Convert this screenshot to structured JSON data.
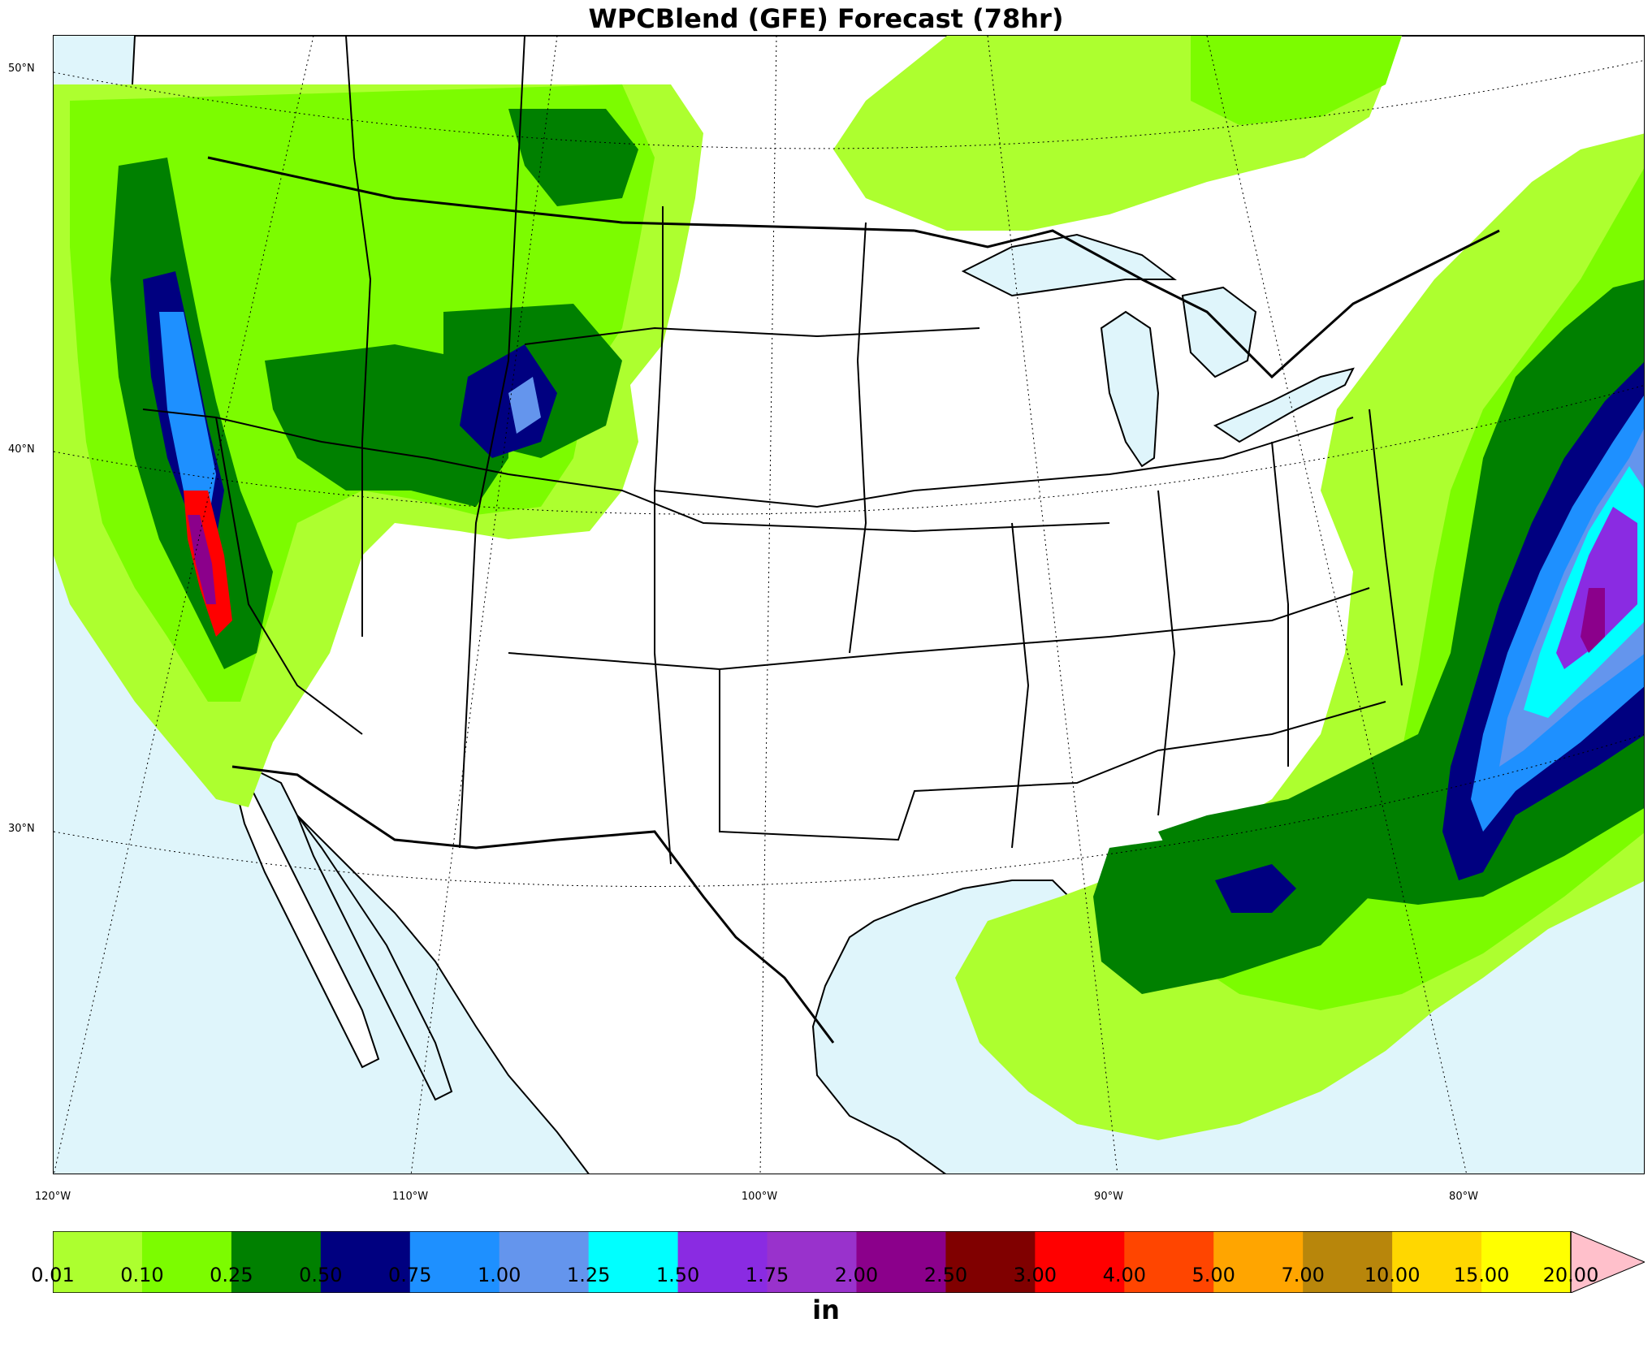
{
  "title": "WPCBlend (GFE) Forecast (78hr)",
  "units": "in",
  "lat_labels": [
    "50°N",
    "40°N",
    "30°N"
  ],
  "lon_labels": [
    "120°W",
    "110°W",
    "100°W",
    "90°W",
    "80°W"
  ],
  "colorbar": {
    "ticks": [
      "0.01",
      "0.10",
      "0.25",
      "0.50",
      "0.75",
      "1.00",
      "1.25",
      "1.50",
      "1.75",
      "2.00",
      "2.50",
      "3.00",
      "4.00",
      "5.00",
      "7.00",
      "10.00",
      "15.00",
      "20.00"
    ],
    "colors": [
      "#adff2f",
      "#7cfc00",
      "#008000",
      "#000080",
      "#1e90ff",
      "#6495ed",
      "#00ffff",
      "#8a2be2",
      "#9932cc",
      "#8b008b",
      "#800000",
      "#ff0000",
      "#ff4500",
      "#ffa500",
      "#b8860b",
      "#ffd700",
      "#ffff00"
    ],
    "extend_color": "#ffc0cb"
  },
  "colors": {
    "ocean": "#dff5fb",
    "land": "#ffffff",
    "border": "#000000"
  }
}
